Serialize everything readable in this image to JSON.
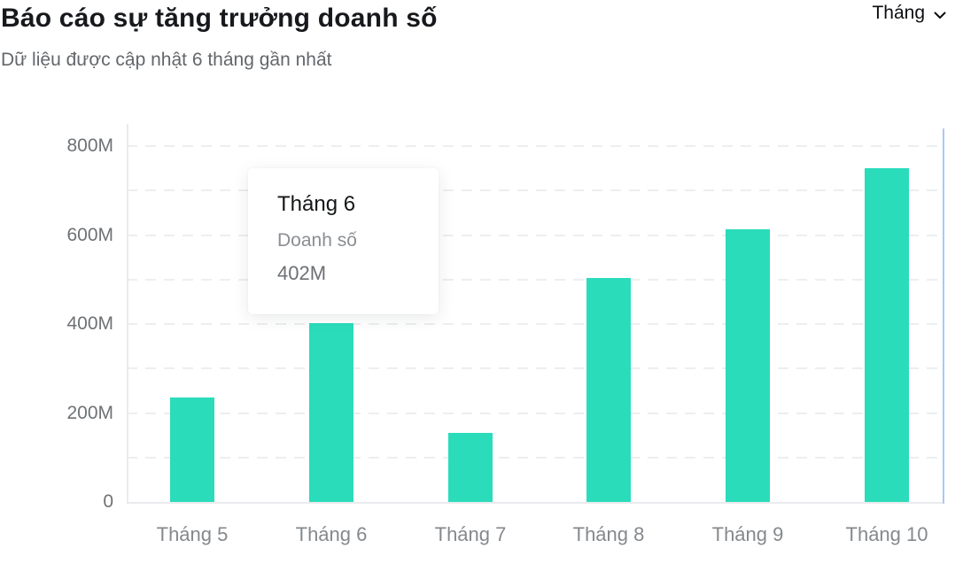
{
  "header": {
    "title": "Báo cáo sự tăng trưởng doanh số",
    "subtitle": "Dữ liệu được cập nhật 6 tháng gần nhất",
    "period_selector": {
      "label": "Tháng",
      "icon": "chevron-down-icon"
    }
  },
  "tooltip": {
    "title": "Tháng 6",
    "series_label": "Doanh số",
    "value": "402M"
  },
  "chart_data": {
    "type": "bar",
    "title": "Báo cáo sự tăng trưởng doanh số",
    "categories": [
      "Tháng 5",
      "Tháng 6",
      "Tháng 7",
      "Tháng 8",
      "Tháng 9",
      "Tháng 10"
    ],
    "series": [
      {
        "name": "Doanh số",
        "values": [
          235,
          402,
          155,
          503,
          612,
          750
        ]
      }
    ],
    "unit": "M",
    "ylim": [
      0,
      800
    ],
    "y_tick_values": [
      0,
      200,
      400,
      600,
      800
    ],
    "y_tick_labels": [
      "0",
      "200M",
      "400M",
      "600M",
      "800M"
    ],
    "grid_interval": 100,
    "grid_style": "dashed-horizontal",
    "legend": "none",
    "highlighted_point": {
      "category": "Tháng 6",
      "series": "Doanh số",
      "value_label": "402M"
    },
    "bar_color": "#2bdcba",
    "cursor_line_color": "#a6c9f6"
  }
}
